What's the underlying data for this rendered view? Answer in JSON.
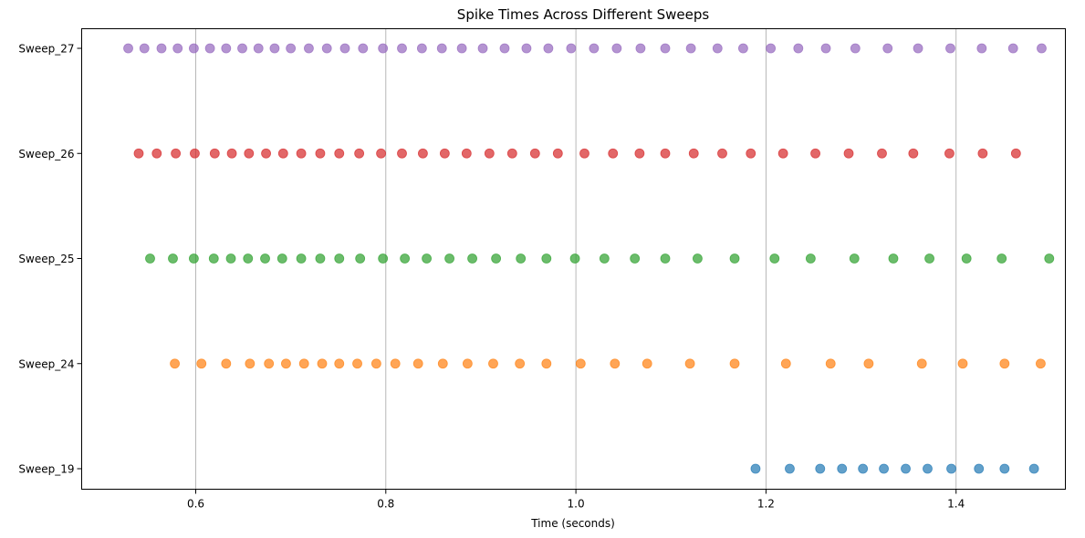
{
  "chart_data": {
    "type": "scatter",
    "title": "Spike Times Across Different Sweeps",
    "xlabel": "Time (seconds)",
    "ylabel": "",
    "xlim": [
      0.48,
      1.515
    ],
    "xticks": [
      0.6,
      0.8,
      1.0,
      1.2,
      1.4
    ],
    "xtick_labels": [
      "0.6",
      "0.8",
      "1.0",
      "1.2",
      "1.4"
    ],
    "grid": "x-axis vertical lines",
    "categories": [
      "Sweep_19",
      "Sweep_24",
      "Sweep_25",
      "Sweep_26",
      "Sweep_27"
    ],
    "series": [
      {
        "category": "Sweep_19",
        "color": "#1f77b4",
        "x": [
          1.189,
          1.225,
          1.257,
          1.28,
          1.302,
          1.324,
          1.347,
          1.37,
          1.395,
          1.424,
          1.451,
          1.482
        ]
      },
      {
        "category": "Sweep_24",
        "color": "#ff7f0e",
        "x": [
          0.578,
          0.606,
          0.632,
          0.657,
          0.677,
          0.695,
          0.714,
          0.733,
          0.751,
          0.77,
          0.79,
          0.81,
          0.834,
          0.86,
          0.886,
          0.913,
          0.941,
          0.969,
          1.005,
          1.041,
          1.075,
          1.12,
          1.167,
          1.221,
          1.268,
          1.308,
          1.364,
          1.407,
          1.451,
          1.489
        ]
      },
      {
        "category": "Sweep_25",
        "color": "#2ca02c",
        "x": [
          0.552,
          0.576,
          0.598,
          0.619,
          0.637,
          0.655,
          0.673,
          0.691,
          0.711,
          0.731,
          0.751,
          0.773,
          0.797,
          0.82,
          0.843,
          0.867,
          0.891,
          0.916,
          0.942,
          0.969,
          0.999,
          1.03,
          1.062,
          1.094,
          1.128,
          1.167,
          1.209,
          1.247,
          1.293,
          1.334,
          1.372,
          1.411,
          1.448,
          1.498
        ]
      },
      {
        "category": "Sweep_26",
        "color": "#d62728",
        "x": [
          0.54,
          0.559,
          0.579,
          0.599,
          0.62,
          0.638,
          0.656,
          0.674,
          0.692,
          0.711,
          0.731,
          0.751,
          0.772,
          0.795,
          0.817,
          0.839,
          0.862,
          0.885,
          0.909,
          0.933,
          0.957,
          0.981,
          1.009,
          1.039,
          1.067,
          1.094,
          1.124,
          1.154,
          1.184,
          1.218,
          1.252,
          1.287,
          1.322,
          1.355,
          1.393,
          1.428,
          1.463
        ]
      },
      {
        "category": "Sweep_27",
        "color": "#9467bd",
        "x": [
          0.529,
          0.546,
          0.564,
          0.581,
          0.598,
          0.615,
          0.632,
          0.649,
          0.666,
          0.683,
          0.7,
          0.719,
          0.738,
          0.757,
          0.776,
          0.797,
          0.817,
          0.838,
          0.859,
          0.88,
          0.902,
          0.925,
          0.948,
          0.971,
          0.995,
          1.019,
          1.043,
          1.068,
          1.094,
          1.121,
          1.149,
          1.176,
          1.205,
          1.234,
          1.263,
          1.294,
          1.328,
          1.36,
          1.394,
          1.427,
          1.46,
          1.49
        ]
      }
    ]
  }
}
